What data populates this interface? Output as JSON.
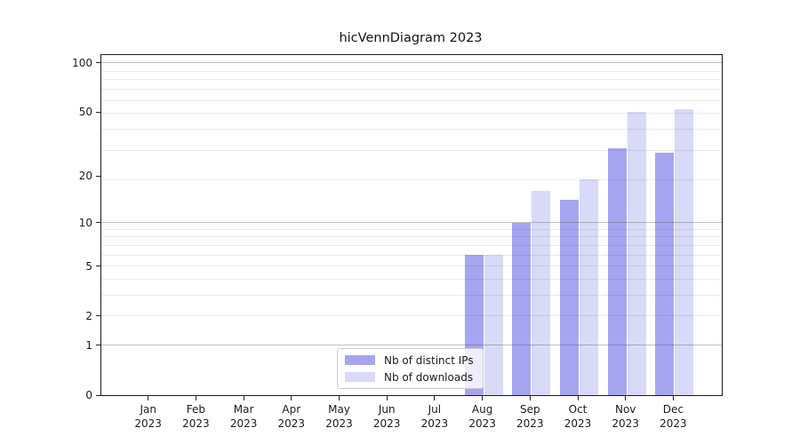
{
  "title": "hicVennDiagram 2023",
  "chart_data": {
    "type": "bar",
    "title": "hicVennDiagram 2023",
    "categories": [
      "Jan",
      "Feb",
      "Mar",
      "Apr",
      "May",
      "Jun",
      "Jul",
      "Aug",
      "Sep",
      "Oct",
      "Nov",
      "Dec"
    ],
    "year_label": "2023",
    "series": [
      {
        "name": "Nb of distinct IPs",
        "color": "#a5a5f1",
        "values": [
          0,
          0,
          0,
          0,
          0,
          0,
          0,
          6,
          10,
          14,
          30,
          28
        ]
      },
      {
        "name": "Nb of downloads",
        "color": "#d9d9f8",
        "values": [
          0,
          0,
          0,
          0,
          0,
          0,
          0,
          6,
          16,
          19,
          50,
          52
        ]
      }
    ],
    "xlabel": "",
    "ylabel": "",
    "yscale": "log(1+v)",
    "ylim": [
      0,
      113
    ],
    "ytick_values": [
      100,
      50,
      20,
      10,
      5,
      2,
      1,
      0
    ],
    "grid": "on",
    "grid_dark_values": [
      1,
      10,
      100
    ],
    "grid_faint_values": [
      2,
      3,
      4,
      5,
      6,
      7,
      8,
      9,
      19,
      29,
      39,
      49,
      59,
      69,
      79,
      89
    ],
    "legend_position": "lower center"
  }
}
